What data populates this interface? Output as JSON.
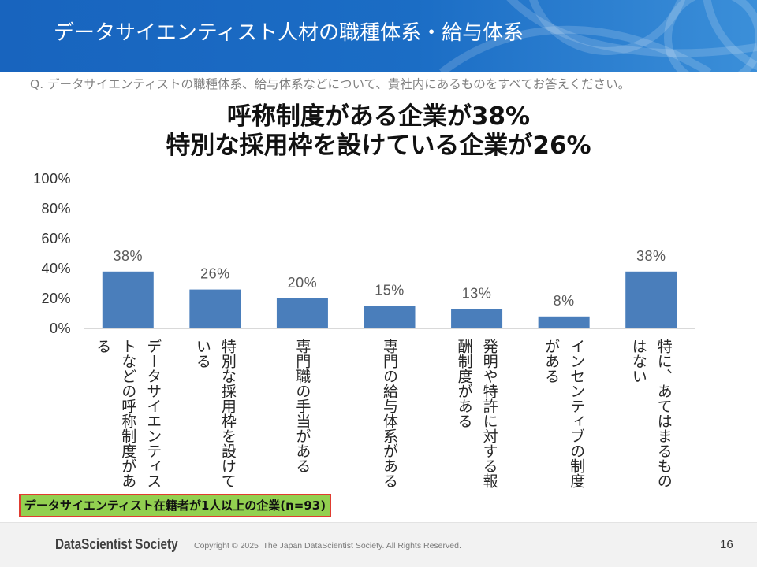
{
  "header": {
    "title": "データサイエンティスト人材の職種体系・給与体系"
  },
  "question": "Q. データサイエンティストの職種体系、給与体系などについて、貴社内にあるものをすべてお答えください。",
  "headline": {
    "line1": "呼称制度がある企業が38%",
    "line2": "特別な採用枠を設けている企業が26%"
  },
  "chart_data": {
    "type": "bar",
    "categories": [
      "データサイエンティストなどの呼称制度がある",
      "特別な採用枠を設けている",
      "専門職の手当がある",
      "専門の給与体系がある",
      "発明や特許に対する報酬制度がある",
      "インセンティブの制度がある",
      "特に、あてはまるものはない"
    ],
    "values": [
      38,
      26,
      20,
      15,
      13,
      8,
      38
    ],
    "value_labels": [
      "38%",
      "26%",
      "20%",
      "15%",
      "13%",
      "8%",
      "38%"
    ],
    "ylim": [
      0,
      100
    ],
    "y_ticks": [
      0,
      20,
      40,
      60,
      80,
      100
    ],
    "y_tick_labels": [
      "0%",
      "20%",
      "40%",
      "60%",
      "80%",
      "100%"
    ],
    "grid": false,
    "legend": "none",
    "bar_color": "#4a7ebb"
  },
  "sample_note": "データサイエンティスト在籍者が1人以上の企業(n=93)",
  "footer": {
    "logo": "DataScientist Society",
    "copyright": "Copyright © 2025  The Japan DataScientist Society. All Rights Reserved.",
    "page_number": "16"
  },
  "colors": {
    "header_blue": "#1b6dc5",
    "note_fill": "#92d050",
    "note_border": "#e03c31"
  }
}
